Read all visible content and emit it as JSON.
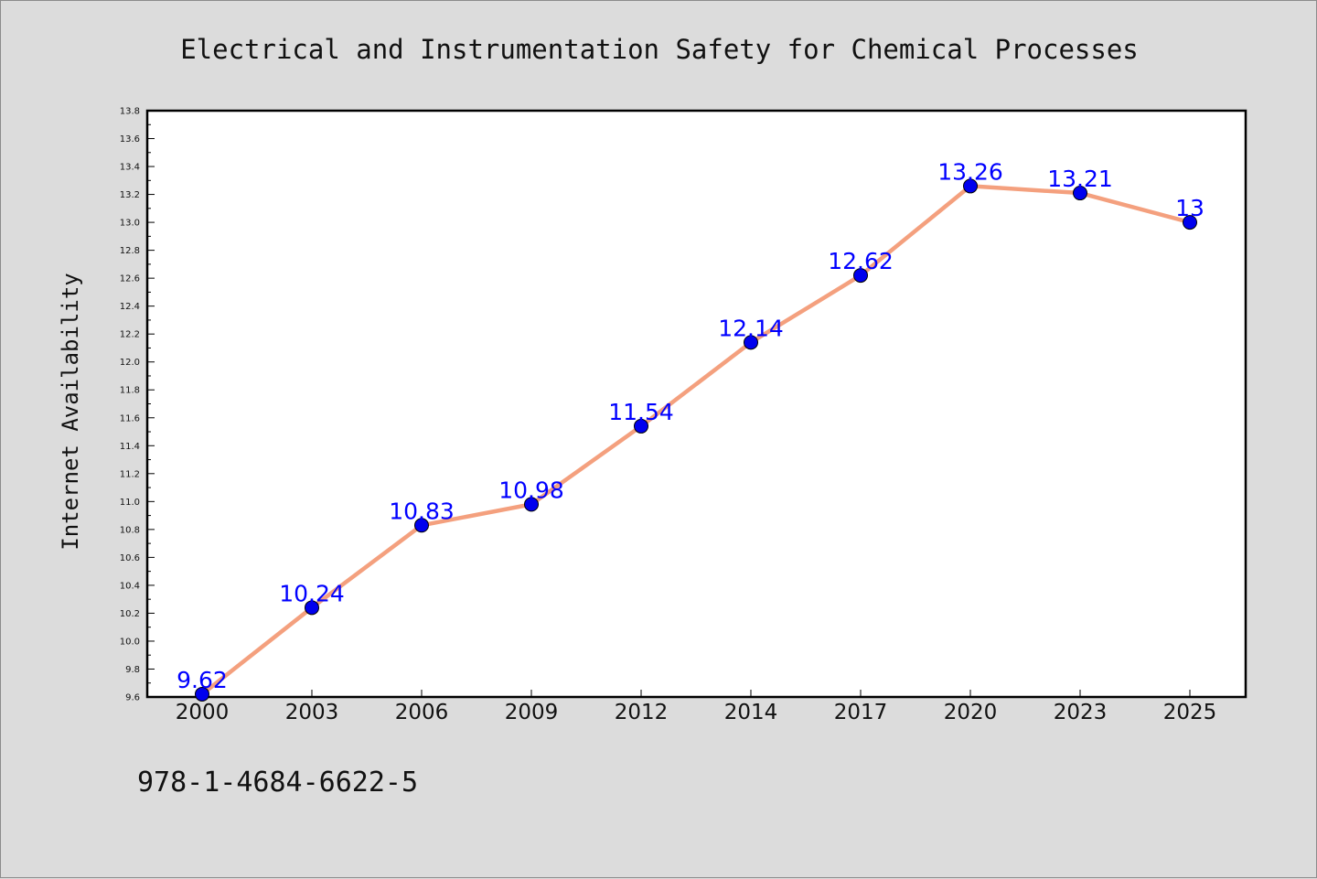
{
  "colors": {
    "background": "#dcdcdc",
    "plot_background": "#ffffff",
    "line": "#f4a07e",
    "marker": "#0000ee",
    "label": "#0000ff"
  },
  "footer": {
    "isbn": "978-1-4684-6622-5"
  },
  "chart_data": {
    "type": "line",
    "title": "Electrical and Instrumentation Safety for Chemical Processes",
    "xlabel": "",
    "ylabel": "Internet Availability",
    "categories": [
      "2000",
      "2003",
      "2006",
      "2009",
      "2012",
      "2014",
      "2017",
      "2020",
      "2023",
      "2025"
    ],
    "series": [
      {
        "values": [
          9.62,
          10.24,
          10.83,
          10.98,
          11.54,
          12.14,
          12.62,
          13.26,
          13.21,
          13.0
        ],
        "labels": [
          "9.62",
          "10.24",
          "10.83",
          "10.98",
          "11.54",
          "12.14",
          "12.62",
          "13.26",
          "13.21",
          "13"
        ]
      }
    ],
    "ylim": [
      9.6,
      13.8
    ],
    "yticks": [
      "9.6",
      "9.8",
      "10.0",
      "10.2",
      "10.4",
      "10.6",
      "10.8",
      "11.0",
      "11.2",
      "11.4",
      "11.6",
      "11.8",
      "12.0",
      "12.2",
      "12.4",
      "12.6",
      "12.8",
      "13.0",
      "13.2",
      "13.4",
      "13.6",
      "13.8"
    ],
    "grid": false,
    "legend": "none"
  }
}
